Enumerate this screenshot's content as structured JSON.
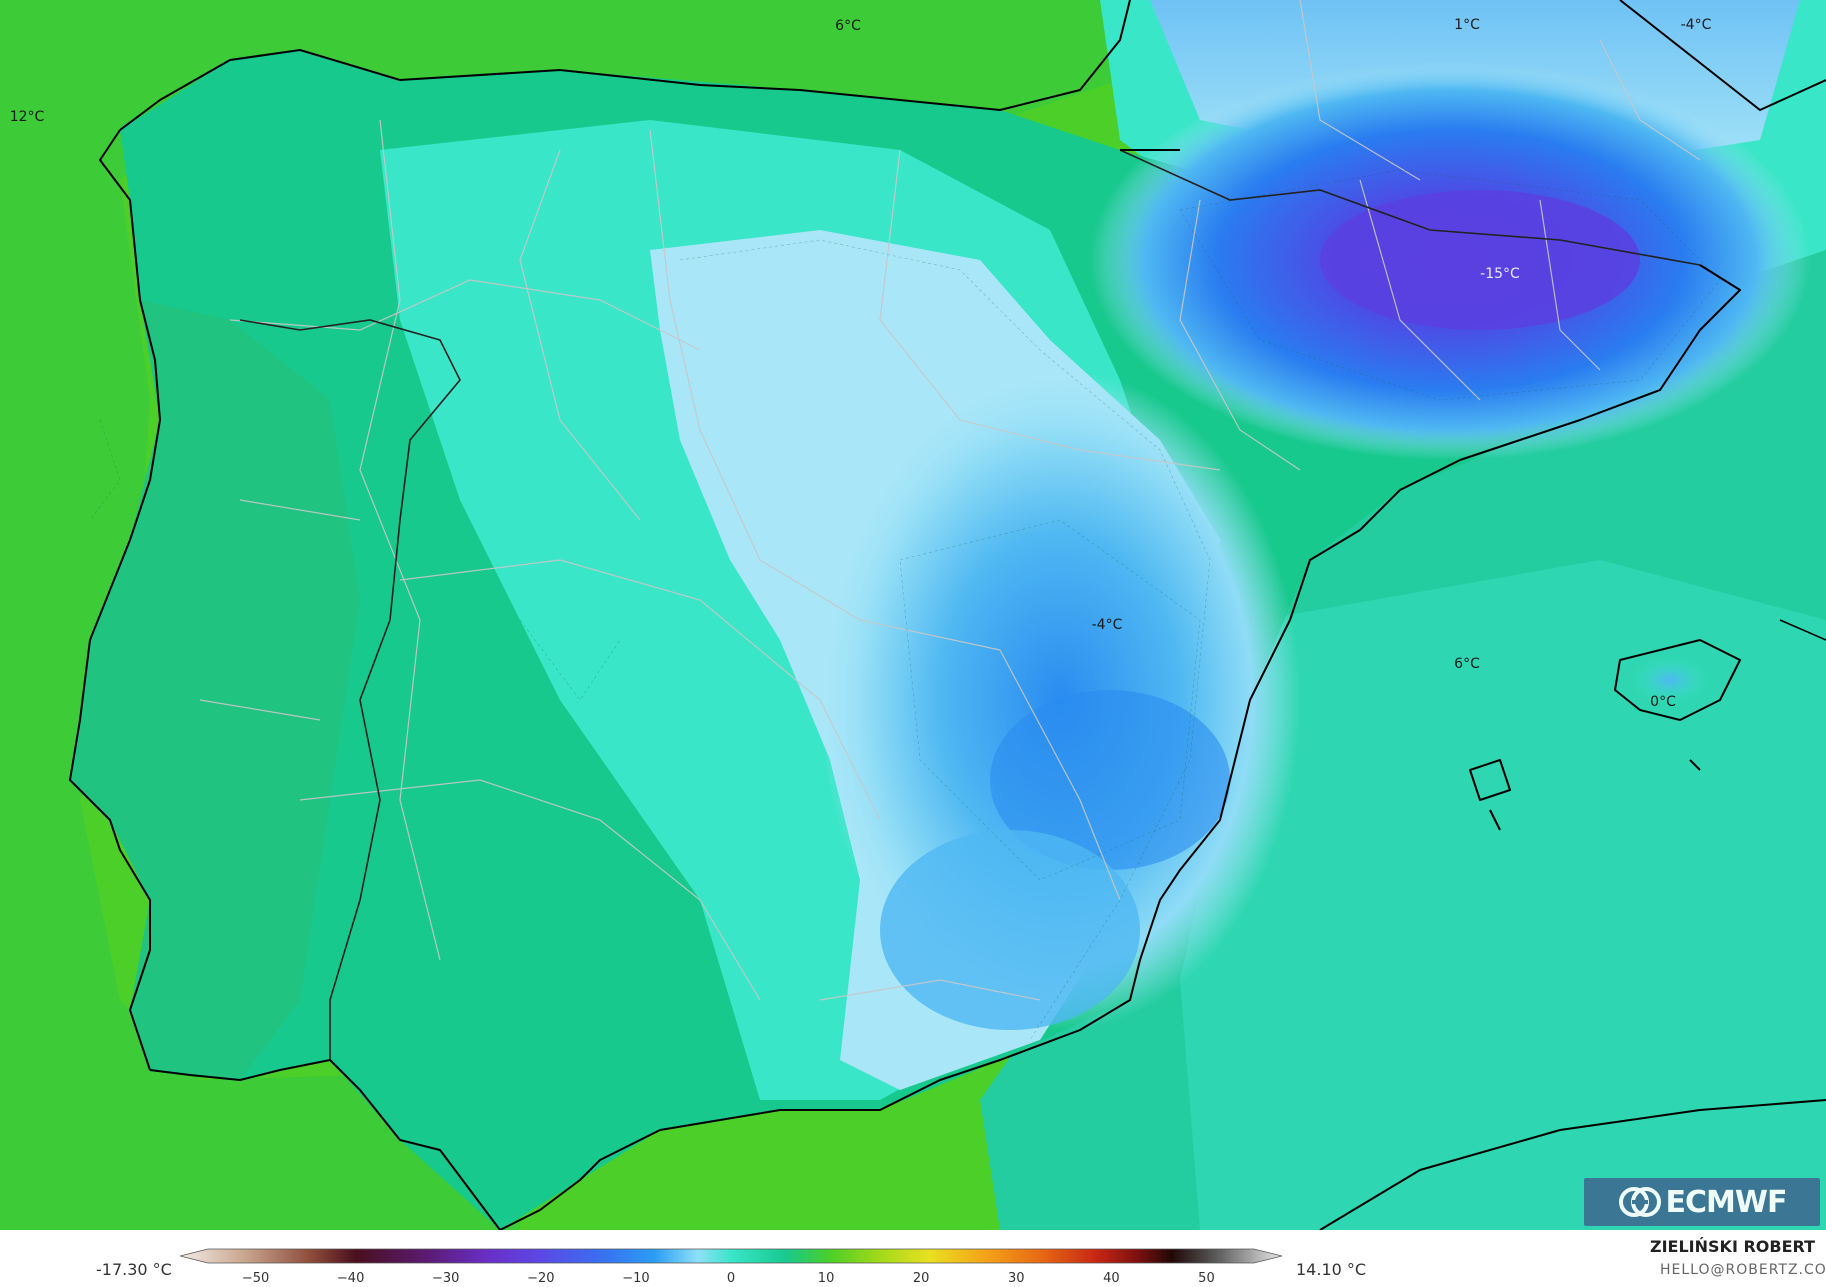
{
  "map": {
    "labels": [
      {
        "id": "label-6-north",
        "text": "6°C"
      },
      {
        "id": "label-12-west",
        "text": "12°C"
      },
      {
        "id": "label-1-france",
        "text": "1°C"
      },
      {
        "id": "label-minus4-ne",
        "text": "-4°C"
      },
      {
        "id": "label-minus15-pyrenees",
        "text": "-15°C"
      },
      {
        "id": "label-minus4-center",
        "text": "-4°C"
      },
      {
        "id": "label-6-mediterranean",
        "text": "6°C"
      },
      {
        "id": "label-0-mallorca",
        "text": "0°C"
      }
    ],
    "colors": {
      "ocean_warm": "#4ccf28",
      "land_mild": "#18c98e",
      "land_cool": "#3ae6c8",
      "cold_light": "#a8e6f8",
      "cold_mid": "#4fb8f2",
      "cold_deep": "#2a8cf0",
      "cold_extreme": "#5a3fe0",
      "coastline": "#000000",
      "borders": "#c8c8c8"
    }
  },
  "legend": {
    "min_label": "-17.30 °C",
    "max_label": "14.10 °C",
    "range": [
      -55,
      55
    ],
    "ticks": [
      "−50",
      "−40",
      "−30",
      "−20",
      "−10",
      "0",
      "10",
      "20",
      "30",
      "40",
      "50"
    ],
    "tick_values": [
      -50,
      -40,
      -30,
      -20,
      -10,
      0,
      10,
      20,
      30,
      40,
      50
    ]
  },
  "branding": {
    "logo_text": "ECMWF",
    "author": "ZIELIŃSKI ROBERT",
    "email": "HELLO@ROBERTZ.CO"
  }
}
